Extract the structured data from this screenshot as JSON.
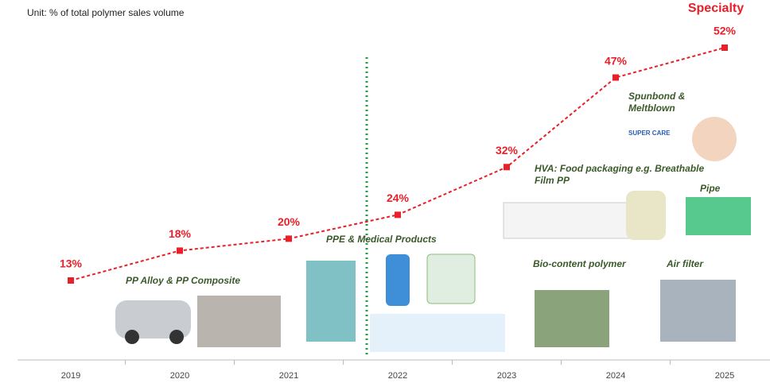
{
  "chart_data": {
    "type": "line",
    "subtitle": "Unit: % of total polymer sales volume",
    "categories": [
      "2019",
      "2020",
      "2021",
      "2022",
      "2023",
      "2024",
      "2025"
    ],
    "series": [
      {
        "name": "Specialty",
        "color": "#e8202a",
        "values": [
          13,
          18,
          20,
          24,
          32,
          47,
          52
        ],
        "value_labels": [
          "13%",
          "18%",
          "20%",
          "24%",
          "32%",
          "47%",
          "52%"
        ]
      }
    ],
    "annotations": [
      "PP Alloy & PP Composite",
      "PPE & Medical Products",
      "HVA: Food packaging e.g. Breathable",
      "Film PP",
      "Spunbond &",
      "Meltblown",
      "Bio-content polymer",
      "Air filter",
      "Pipe",
      "SUPER CARE"
    ]
  }
}
